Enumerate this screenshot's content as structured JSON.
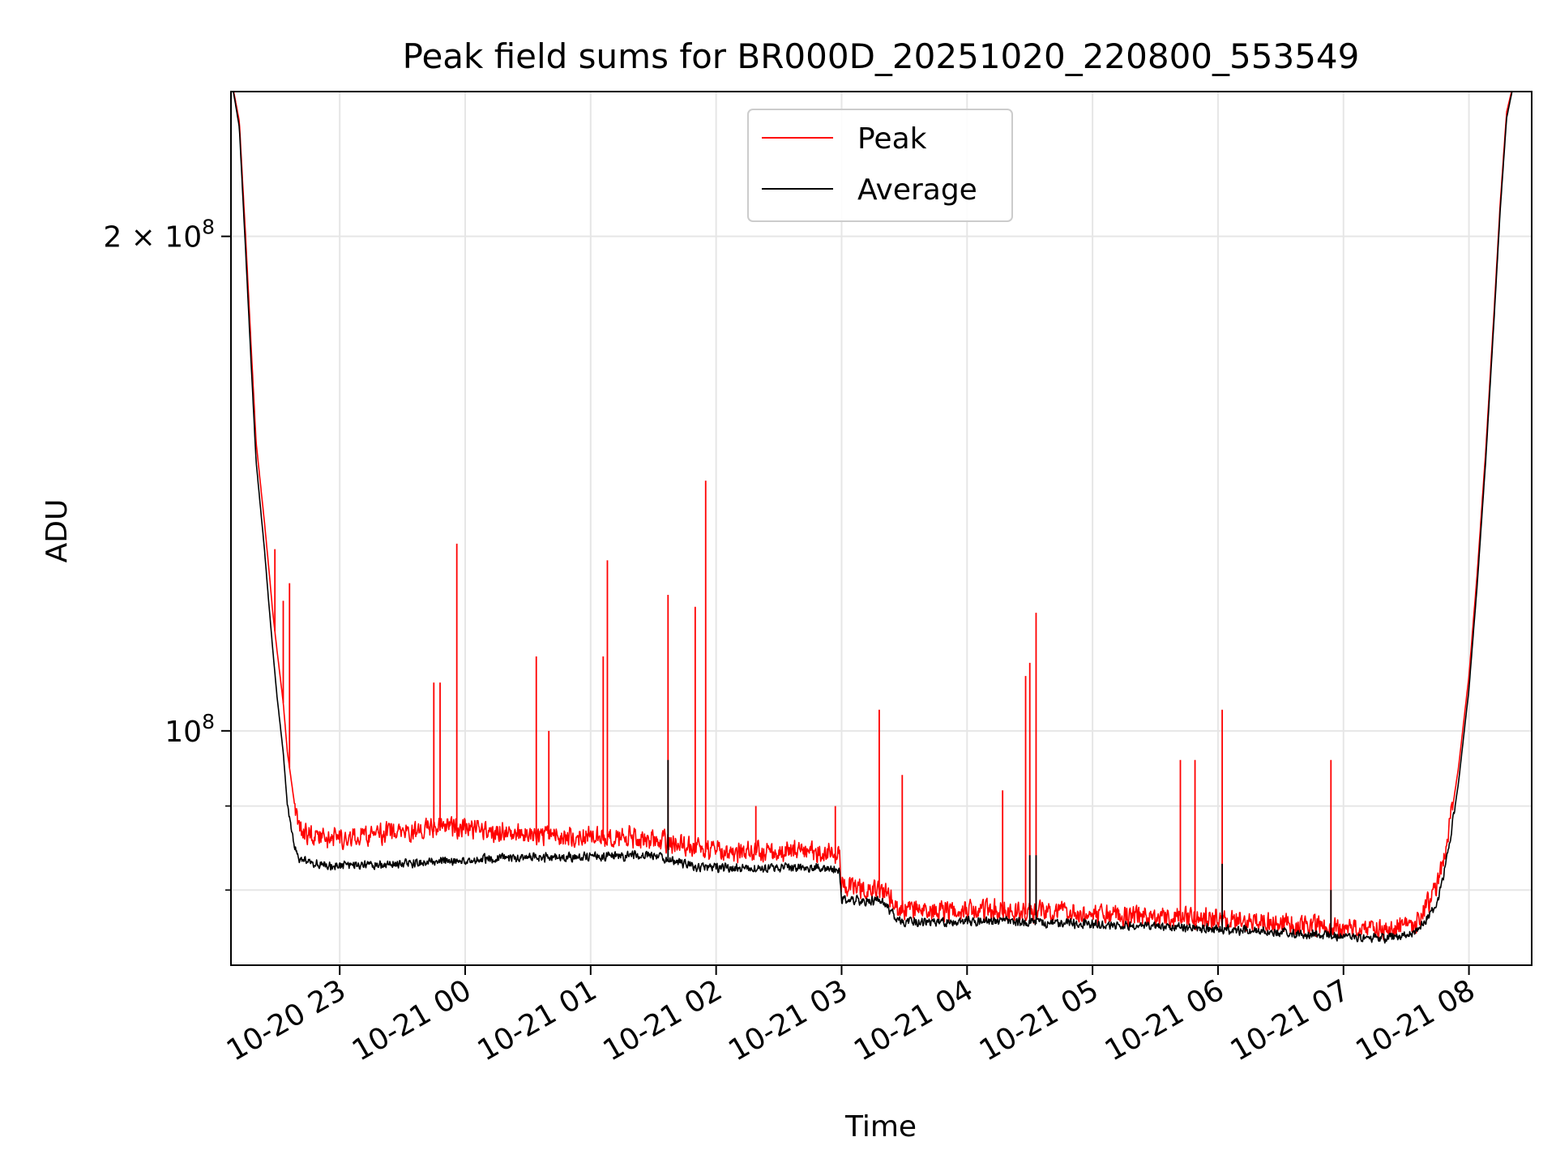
{
  "chart_data": {
    "type": "line",
    "title": "Peak field sums for BR000D_20251020_220800_553549",
    "xlabel": "Time",
    "ylabel": "ADU",
    "yscale": "log",
    "xlim": [
      "2025-10-20 22:08",
      "2025-10-21 08:30"
    ],
    "ylim": [
      72000000,
      245000000
    ],
    "grid": true,
    "legend_position": "upper center",
    "x_ticks": [
      {
        "t": "2025-10-20 23:00",
        "label": "10-20 23"
      },
      {
        "t": "2025-10-21 00:00",
        "label": "10-21 00"
      },
      {
        "t": "2025-10-21 01:00",
        "label": "10-21 01"
      },
      {
        "t": "2025-10-21 02:00",
        "label": "10-21 02"
      },
      {
        "t": "2025-10-21 03:00",
        "label": "10-21 03"
      },
      {
        "t": "2025-10-21 04:00",
        "label": "10-21 04"
      },
      {
        "t": "2025-10-21 05:00",
        "label": "10-21 05"
      },
      {
        "t": "2025-10-21 06:00",
        "label": "10-21 06"
      },
      {
        "t": "2025-10-21 07:00",
        "label": "10-21 07"
      },
      {
        "t": "2025-10-21 08:00",
        "label": "10-21 08"
      }
    ],
    "y_major_ticks": [
      {
        "value": 100000000,
        "base": "10",
        "exp": "8",
        "coef": ""
      },
      {
        "value": 200000000,
        "base": "10",
        "exp": "8",
        "coef": "2 × "
      }
    ],
    "y_minor_ticks": [
      80000000,
      90000000
    ],
    "series": [
      {
        "name": "Peak",
        "color": "#ff0000",
        "points": [
          [
            "2025-10-20 22:08",
            250000000
          ],
          [
            "2025-10-20 22:12",
            235000000
          ],
          [
            "2025-10-20 22:15",
            200000000
          ],
          [
            "2025-10-20 22:18",
            168000000
          ],
          [
            "2025-10-20 22:20",
            150000000
          ],
          [
            "2025-10-20 22:24",
            134000000
          ],
          [
            "2025-10-20 22:26",
            126000000
          ],
          [
            "2025-10-20 22:28",
            118000000
          ],
          [
            "2025-10-20 22:30",
            112000000
          ],
          [
            "2025-10-20 22:33",
            104000000
          ],
          [
            "2025-10-20 22:35",
            97000000
          ],
          [
            "2025-10-20 22:38",
            91000000
          ],
          [
            "2025-10-20 22:40",
            87000000
          ],
          [
            "2025-10-20 22:45",
            86000000
          ],
          [
            "2025-10-20 22:55",
            85500000
          ],
          [
            "2025-10-20 23:15",
            86000000
          ],
          [
            "2025-10-20 23:35",
            86500000
          ],
          [
            "2025-10-20 23:50",
            87000000
          ],
          [
            "2025-10-21 00:10",
            86500000
          ],
          [
            "2025-10-21 00:30",
            86000000
          ],
          [
            "2025-10-21 00:50",
            85800000
          ],
          [
            "2025-10-21 01:10",
            85800000
          ],
          [
            "2025-10-21 01:30",
            85500000
          ],
          [
            "2025-10-21 01:50",
            84500000
          ],
          [
            "2025-10-21 02:10",
            84000000
          ],
          [
            "2025-10-21 02:40",
            84000000
          ],
          [
            "2025-10-21 02:59",
            83500000
          ],
          [
            "2025-10-21 03:00",
            80000000
          ],
          [
            "2025-10-21 03:20",
            79500000
          ],
          [
            "2025-10-21 03:27",
            77500000
          ],
          [
            "2025-10-21 03:40",
            77300000
          ],
          [
            "2025-10-21 04:00",
            77400000
          ],
          [
            "2025-10-21 04:30",
            77300000
          ],
          [
            "2025-10-21 05:00",
            77000000
          ],
          [
            "2025-10-21 05:30",
            76600000
          ],
          [
            "2025-10-21 06:00",
            76400000
          ],
          [
            "2025-10-21 06:30",
            76000000
          ],
          [
            "2025-10-21 07:00",
            75500000
          ],
          [
            "2025-10-21 07:20",
            75300000
          ],
          [
            "2025-10-21 07:35",
            76000000
          ],
          [
            "2025-10-21 07:45",
            80000000
          ],
          [
            "2025-10-21 07:50",
            86000000
          ],
          [
            "2025-10-21 07:55",
            95000000
          ],
          [
            "2025-10-21 08:00",
            108000000
          ],
          [
            "2025-10-21 08:04",
            125000000
          ],
          [
            "2025-10-21 08:08",
            148000000
          ],
          [
            "2025-10-21 08:12",
            180000000
          ],
          [
            "2025-10-21 08:15",
            210000000
          ],
          [
            "2025-10-21 08:18",
            238000000
          ],
          [
            "2025-10-21 08:22",
            250000000
          ],
          [
            "2025-10-21 08:30",
            250000000
          ]
        ],
        "spikes": [
          [
            "2025-10-20 22:29",
            129000000
          ],
          [
            "2025-10-20 22:33",
            120000000
          ],
          [
            "2025-10-20 22:36",
            123000000
          ],
          [
            "2025-10-20 23:45",
            107000000
          ],
          [
            "2025-10-20 23:48",
            107000000
          ],
          [
            "2025-10-20 23:56",
            130000000
          ],
          [
            "2025-10-21 00:34",
            111000000
          ],
          [
            "2025-10-21 00:40",
            100000000
          ],
          [
            "2025-10-21 01:06",
            111000000
          ],
          [
            "2025-10-21 01:08",
            127000000
          ],
          [
            "2025-10-21 01:37",
            121000000
          ],
          [
            "2025-10-21 01:50",
            119000000
          ],
          [
            "2025-10-21 01:55",
            142000000
          ],
          [
            "2025-10-21 02:19",
            90000000
          ],
          [
            "2025-10-21 02:57",
            90000000
          ],
          [
            "2025-10-21 03:18",
            103000000
          ],
          [
            "2025-10-21 03:29",
            94000000
          ],
          [
            "2025-10-21 04:17",
            92000000
          ],
          [
            "2025-10-21 04:28",
            108000000
          ],
          [
            "2025-10-21 04:30",
            110000000
          ],
          [
            "2025-10-21 04:33",
            118000000
          ],
          [
            "2025-10-21 05:42",
            96000000
          ],
          [
            "2025-10-21 05:49",
            96000000
          ],
          [
            "2025-10-21 06:02",
            103000000
          ],
          [
            "2025-10-21 06:54",
            96000000
          ]
        ]
      },
      {
        "name": "Average",
        "color": "#000000",
        "points": [
          [
            "2025-10-20 22:08",
            250000000
          ],
          [
            "2025-10-20 22:12",
            233000000
          ],
          [
            "2025-10-20 22:15",
            196000000
          ],
          [
            "2025-10-20 22:18",
            164000000
          ],
          [
            "2025-10-20 22:20",
            146000000
          ],
          [
            "2025-10-20 22:24",
            129000000
          ],
          [
            "2025-10-20 22:26",
            120000000
          ],
          [
            "2025-10-20 22:28",
            112000000
          ],
          [
            "2025-10-20 22:30",
            105000000
          ],
          [
            "2025-10-20 22:33",
            97000000
          ],
          [
            "2025-10-20 22:35",
            90000000
          ],
          [
            "2025-10-20 22:38",
            85000000
          ],
          [
            "2025-10-20 22:40",
            83500000
          ],
          [
            "2025-10-20 22:45",
            83000000
          ],
          [
            "2025-10-20 22:55",
            82600000
          ],
          [
            "2025-10-20 23:15",
            82700000
          ],
          [
            "2025-10-20 23:35",
            82900000
          ],
          [
            "2025-10-20 23:50",
            83200000
          ],
          [
            "2025-10-21 00:10",
            83400000
          ],
          [
            "2025-10-21 00:30",
            83500000
          ],
          [
            "2025-10-21 00:50",
            83600000
          ],
          [
            "2025-10-21 01:10",
            83700000
          ],
          [
            "2025-10-21 01:30",
            83800000
          ],
          [
            "2025-10-21 01:50",
            82500000
          ],
          [
            "2025-10-21 02:10",
            82300000
          ],
          [
            "2025-10-21 02:40",
            82400000
          ],
          [
            "2025-10-21 02:59",
            82200000
          ],
          [
            "2025-10-21 03:00",
            78800000
          ],
          [
            "2025-10-21 03:20",
            78500000
          ],
          [
            "2025-10-21 03:27",
            76400000
          ],
          [
            "2025-10-21 03:40",
            76300000
          ],
          [
            "2025-10-21 04:00",
            76400000
          ],
          [
            "2025-10-21 04:30",
            76300000
          ],
          [
            "2025-10-21 05:00",
            76100000
          ],
          [
            "2025-10-21 05:30",
            75800000
          ],
          [
            "2025-10-21 06:00",
            75600000
          ],
          [
            "2025-10-21 06:30",
            75200000
          ],
          [
            "2025-10-21 07:00",
            74800000
          ],
          [
            "2025-10-21 07:20",
            74600000
          ],
          [
            "2025-10-21 07:35",
            75200000
          ],
          [
            "2025-10-21 07:45",
            78500000
          ],
          [
            "2025-10-21 07:50",
            84000000
          ],
          [
            "2025-10-21 07:55",
            93000000
          ],
          [
            "2025-10-21 08:00",
            106000000
          ],
          [
            "2025-10-21 08:04",
            123000000
          ],
          [
            "2025-10-21 08:08",
            146000000
          ],
          [
            "2025-10-21 08:12",
            178000000
          ],
          [
            "2025-10-21 08:15",
            208000000
          ],
          [
            "2025-10-21 08:18",
            236000000
          ],
          [
            "2025-10-21 08:22",
            250000000
          ],
          [
            "2025-10-21 08:30",
            250000000
          ]
        ],
        "spikes": [
          [
            "2025-10-21 01:37",
            96000000
          ],
          [
            "2025-10-21 04:30",
            84000000
          ],
          [
            "2025-10-21 04:33",
            84000000
          ],
          [
            "2025-10-21 06:02",
            83000000
          ],
          [
            "2025-10-21 06:54",
            80000000
          ]
        ]
      }
    ]
  }
}
